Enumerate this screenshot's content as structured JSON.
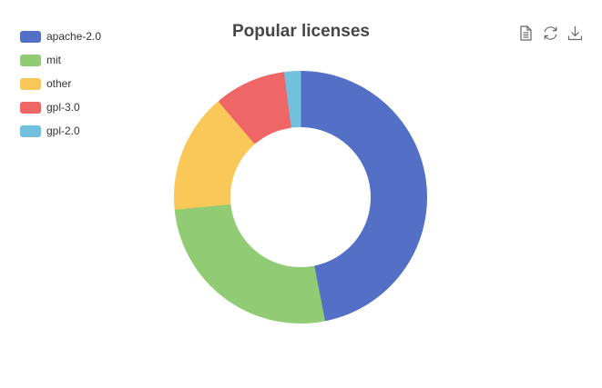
{
  "chart_data": {
    "type": "pie",
    "title": "Popular licenses",
    "categories": [
      "apache-2.0",
      "mit",
      "other",
      "gpl-3.0",
      "gpl-2.0"
    ],
    "values": [
      46,
      26,
      15,
      9,
      2
    ],
    "colors": [
      "#5470c6",
      "#91cc75",
      "#fac858",
      "#ee6666",
      "#73c0de"
    ],
    "style": "donut",
    "legend_position": "top-left"
  },
  "toolbox": {
    "icons": [
      "data-view-icon",
      "refresh-icon",
      "download-icon"
    ]
  }
}
